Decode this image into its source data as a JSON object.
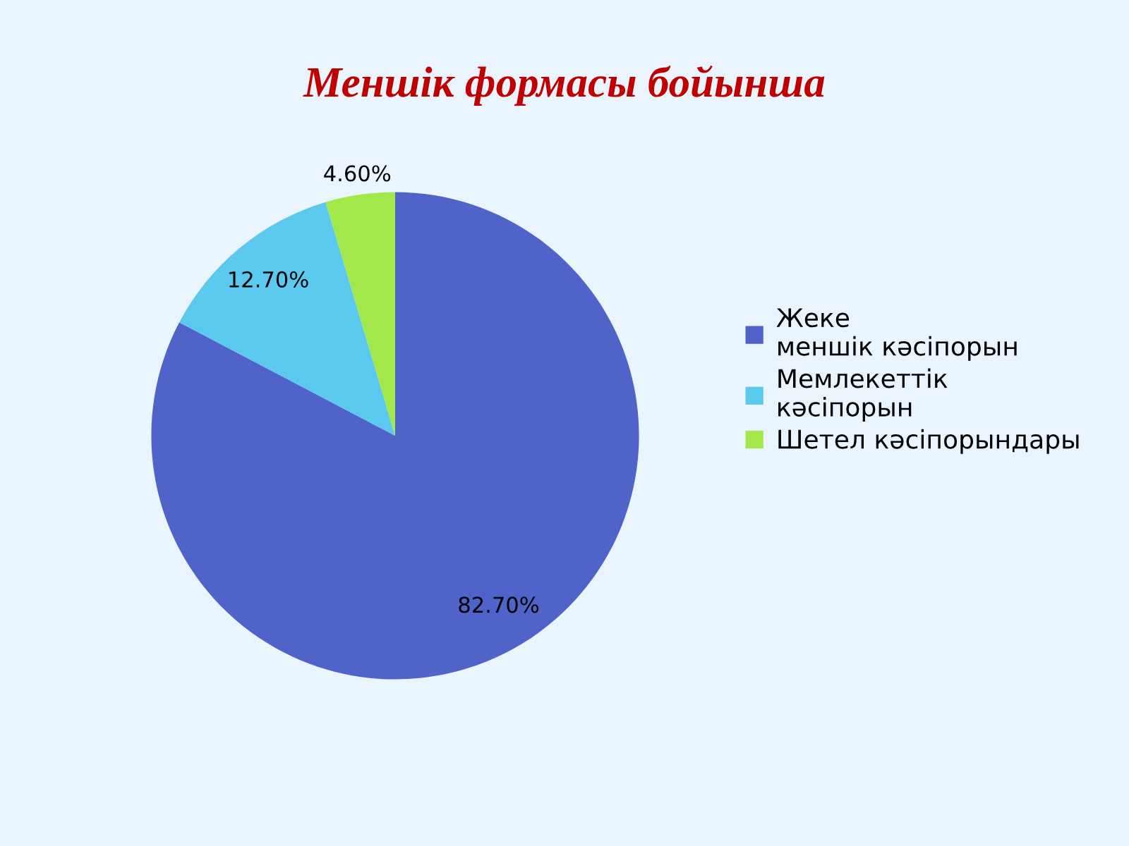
{
  "chart_data": {
    "type": "pie",
    "title": "Меншік формасы бойынша",
    "categories": [
      "Жеке меншік кәсіпорын",
      "Мемлекеттік кәсіпорын",
      "Шетел кәсіпорындары"
    ],
    "values": [
      82.7,
      12.7,
      4.6
    ],
    "colors": [
      "#4f63c9",
      "#5bc8ee",
      "#a3e84a"
    ],
    "value_labels": [
      "82.70%",
      "12.70%",
      "4.60%"
    ],
    "legend": "right"
  }
}
